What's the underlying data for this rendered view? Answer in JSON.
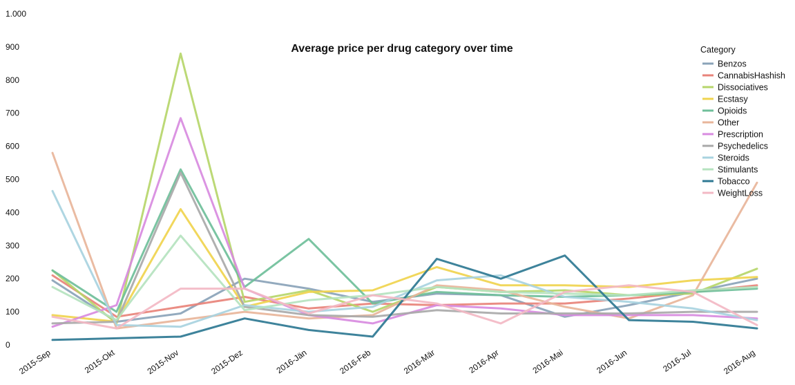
{
  "chart_data": {
    "type": "line",
    "title": "Average price per drug category over time",
    "xlabel": "",
    "ylabel": "",
    "categories": [
      "2015-Sep",
      "2015-Okt",
      "2015-Nov",
      "2015-Dez",
      "2016-Jän",
      "2016-Feb",
      "2016-Mär",
      "2016-Apr",
      "2016-Mai",
      "2016-Jun",
      "2016-Jul",
      "2016-Aug"
    ],
    "ylim": [
      0,
      1000
    ],
    "yticks": [
      {
        "value": 0,
        "label": "0"
      },
      {
        "value": 100,
        "label": "100"
      },
      {
        "value": 200,
        "label": "200"
      },
      {
        "value": 300,
        "label": "300"
      },
      {
        "value": 400,
        "label": "400"
      },
      {
        "value": 500,
        "label": "500"
      },
      {
        "value": 600,
        "label": "600"
      },
      {
        "value": 700,
        "label": "700"
      },
      {
        "value": 800,
        "label": "800"
      },
      {
        "value": 900,
        "label": "900"
      },
      {
        "value": 1000,
        "label": "1.000"
      }
    ],
    "grid": false,
    "legend": {
      "title": "Category",
      "position": "right"
    },
    "series": [
      {
        "name": "Benzos",
        "color": "#8aa3b8",
        "values": [
          195,
          70,
          95,
          200,
          170,
          130,
          155,
          150,
          85,
          120,
          160,
          200
        ]
      },
      {
        "name": "CannabisHashish",
        "color": "#e8837a",
        "values": [
          210,
          85,
          115,
          145,
          110,
          125,
          120,
          125,
          125,
          140,
          160,
          180
        ]
      },
      {
        "name": "Dissociatives",
        "color": "#b6d66a",
        "values": [
          225,
          65,
          880,
          130,
          165,
          100,
          175,
          160,
          165,
          150,
          155,
          230
        ]
      },
      {
        "name": "Ecstasy",
        "color": "#f0d44e",
        "values": [
          90,
          70,
          410,
          115,
          160,
          165,
          235,
          180,
          180,
          175,
          195,
          205
        ]
      },
      {
        "name": "Opioids",
        "color": "#6fbf9a",
        "values": [
          225,
          100,
          530,
          175,
          320,
          125,
          160,
          150,
          145,
          150,
          160,
          170
        ]
      },
      {
        "name": "Other",
        "color": "#e8b59a",
        "values": [
          580,
          50,
          75,
          100,
          80,
          90,
          180,
          165,
          115,
          80,
          150,
          490
        ]
      },
      {
        "name": "Prescription",
        "color": "#d88be0",
        "values": [
          55,
          120,
          685,
          170,
          90,
          65,
          120,
          110,
          90,
          90,
          90,
          80
        ]
      },
      {
        "name": "Psychedelics",
        "color": "#a9a9a9",
        "values": [
          65,
          70,
          520,
          115,
          90,
          85,
          105,
          95,
          95,
          95,
          100,
          100
        ]
      },
      {
        "name": "Steroids",
        "color": "#a8d3df",
        "values": [
          465,
          60,
          55,
          120,
          100,
          115,
          195,
          210,
          145,
          130,
          110,
          75
        ]
      },
      {
        "name": "Stimulants",
        "color": "#b5e3bf",
        "values": [
          175,
          75,
          330,
          105,
          135,
          150,
          175,
          160,
          155,
          150,
          165,
          175
        ]
      },
      {
        "name": "Tobacco",
        "color": "#2e7893",
        "values": [
          15,
          20,
          25,
          80,
          45,
          25,
          260,
          200,
          270,
          75,
          70,
          50
        ]
      },
      {
        "name": "WeightLoss",
        "color": "#f3b8c4",
        "values": [
          85,
          50,
          170,
          170,
          95,
          150,
          125,
          65,
          160,
          180,
          160,
          60
        ]
      }
    ]
  }
}
